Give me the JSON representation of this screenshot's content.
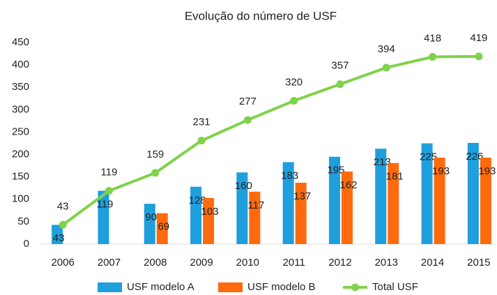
{
  "chart_data": {
    "type": "bar",
    "title": "Evolução do número de USF",
    "categories": [
      "2006",
      "2007",
      "2008",
      "2009",
      "2010",
      "2011",
      "2012",
      "2013",
      "2014",
      "2015"
    ],
    "series": [
      {
        "name": "USF modelo A",
        "type": "bar",
        "color": "#1f9fdc",
        "values": [
          43,
          119,
          90,
          128,
          160,
          183,
          195,
          213,
          225,
          226
        ]
      },
      {
        "name": "USF modelo B",
        "type": "bar",
        "color": "#ff6a0d",
        "values": [
          null,
          null,
          69,
          103,
          117,
          137,
          162,
          181,
          193,
          193
        ]
      },
      {
        "name": "Total USF",
        "type": "line",
        "color": "#7fd24a",
        "values": [
          43,
          119,
          159,
          231,
          277,
          320,
          357,
          394,
          418,
          419
        ]
      }
    ],
    "ylim": [
      0,
      450
    ],
    "yticks": [
      0,
      50,
      100,
      150,
      200,
      250,
      300,
      350,
      400,
      450
    ],
    "grid": false,
    "legend": "bottom"
  }
}
